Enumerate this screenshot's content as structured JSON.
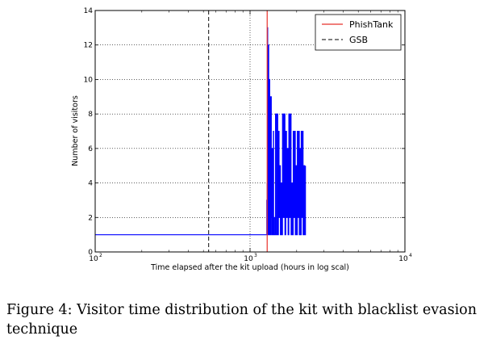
{
  "chart_data": {
    "type": "line",
    "xscale": "log",
    "xlim": [
      100,
      10000
    ],
    "ylim": [
      0,
      14
    ],
    "xlabel": "Time elapsed after the kit upload (hours in log scal)",
    "ylabel": "Number of visitors",
    "x_ticks": [
      {
        "base": "10",
        "exp": "2"
      },
      {
        "base": "10",
        "exp": "3"
      },
      {
        "base": "10",
        "exp": "4"
      }
    ],
    "y_ticks": [
      "0",
      "2",
      "4",
      "6",
      "8",
      "10",
      "12",
      "14"
    ],
    "grid": true,
    "legend_position": "top-right",
    "vlines": [
      {
        "name": "PhishTank",
        "x": 1290,
        "color": "#e8302a",
        "style": "solid"
      },
      {
        "name": "GSB",
        "x": 540,
        "color": "#333333",
        "style": "dashed"
      }
    ],
    "series": [
      {
        "color": "#0000ff",
        "x": [
          100,
          1280,
          1282,
          1290,
          1297,
          1300,
          1305,
          1310,
          1316,
          1320,
          1325,
          1330,
          1336,
          1340,
          1346,
          1350,
          1356,
          1362,
          1366,
          1372,
          1378,
          1385,
          1390,
          1397,
          1403,
          1408,
          1414,
          1420,
          1428,
          1440,
          1460,
          1480,
          1500,
          1510,
          1525,
          1540,
          1555,
          1570,
          1585,
          1600,
          1620,
          1640,
          1660,
          1680,
          1700,
          1720,
          1740,
          1760,
          1780,
          1800,
          1820,
          1840,
          1860,
          1880,
          1900,
          1920,
          1940,
          1960,
          1980,
          2000,
          2020,
          2040,
          2060,
          2080,
          2100,
          2120,
          2140,
          2160,
          2180,
          2200,
          2220,
          2250,
          2280
        ],
        "y": [
          1,
          1,
          3,
          4,
          13,
          1,
          11,
          2,
          12,
          1,
          6,
          2,
          10,
          1,
          9,
          2,
          6,
          1,
          9,
          2,
          6,
          1,
          4,
          1,
          6,
          2,
          7,
          1,
          2,
          1,
          8,
          1,
          8,
          1,
          7,
          2,
          5,
          1,
          4,
          1,
          8,
          2,
          8,
          1,
          7,
          2,
          6,
          1,
          8,
          2,
          8,
          1,
          4,
          1,
          7,
          2,
          7,
          1,
          5,
          1,
          7,
          2,
          7,
          1,
          6,
          1,
          7,
          2,
          7,
          1,
          5,
          1,
          5
        ]
      }
    ]
  },
  "caption": "Figure 4: Visitor time distribution of the kit with blacklist evasion technique"
}
